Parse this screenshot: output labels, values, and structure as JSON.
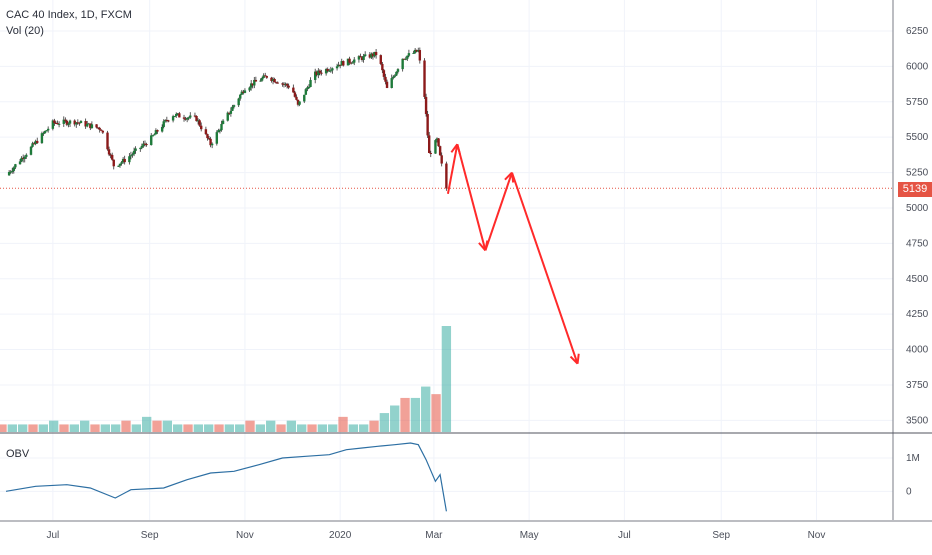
{
  "chart_data": [
    {
      "type": "candlestick",
      "title": "CAC 40 Index, 1D, FXCM",
      "indicator_label": "Vol (20)",
      "y_ticks": [
        3500,
        3750,
        4000,
        4250,
        4500,
        4750,
        5000,
        5250,
        5500,
        5750,
        6000,
        6250
      ],
      "ylim": [
        3460,
        6370
      ],
      "last_price": 5139,
      "x_ticks": [
        "Jul",
        "Sep",
        "Nov",
        "2020",
        "Mar",
        "May",
        "Jul",
        "Sep",
        "Nov"
      ],
      "series_close": {
        "x": [
          "2019-06-01",
          "2019-06-15",
          "2019-07-01",
          "2019-07-15",
          "2019-08-01",
          "2019-08-09",
          "2019-08-15",
          "2019-09-01",
          "2019-09-15",
          "2019-10-01",
          "2019-10-10",
          "2019-10-20",
          "2019-11-01",
          "2019-11-15",
          "2019-12-01",
          "2019-12-05",
          "2019-12-15",
          "2020-01-01",
          "2020-01-15",
          "2020-01-25",
          "2020-01-31",
          "2020-02-10",
          "2020-02-20",
          "2020-02-24",
          "2020-02-27",
          "2020-03-03",
          "2020-03-06",
          "2020-03-09"
        ],
        "values": [
          5230,
          5400,
          5600,
          5610,
          5560,
          5300,
          5330,
          5480,
          5660,
          5630,
          5450,
          5640,
          5850,
          5930,
          5850,
          5720,
          5940,
          6020,
          6060,
          6090,
          5840,
          6060,
          6110,
          5790,
          5380,
          5480,
          5300,
          5139
        ]
      },
      "annotation_path": {
        "x": [
          "2020-03-10",
          "2020-03-16",
          "2020-04-03",
          "2020-04-20",
          "2020-06-01"
        ],
        "values": [
          5100,
          5450,
          4700,
          5250,
          3900
        ]
      }
    },
    {
      "type": "bar",
      "title": "Vol (20)",
      "note": "volume bars, scale not printed",
      "values": [
        2,
        2,
        2,
        2,
        2,
        3,
        2,
        2,
        3,
        2,
        2,
        2,
        3,
        2,
        4,
        3,
        3,
        2,
        2,
        2,
        2,
        2,
        2,
        2,
        3,
        2,
        3,
        2,
        3,
        2,
        2,
        2,
        2,
        4,
        2,
        2,
        3,
        5,
        7,
        9,
        9,
        12,
        10,
        28
      ]
    },
    {
      "type": "line",
      "title": "OBV",
      "y_ticks": [
        "1M",
        "0"
      ],
      "x": [
        "2019-06-01",
        "2019-06-20",
        "2019-07-10",
        "2019-07-25",
        "2019-08-10",
        "2019-08-20",
        "2019-09-10",
        "2019-09-25",
        "2019-10-10",
        "2019-10-25",
        "2019-11-10",
        "2019-11-25",
        "2019-12-10",
        "2019-12-25",
        "2020-01-05",
        "2020-01-15",
        "2020-01-25",
        "2020-02-05",
        "2020-02-15",
        "2020-02-20",
        "2020-02-25",
        "2020-03-02",
        "2020-03-05",
        "2020-03-09"
      ],
      "values": [
        0.0,
        0.15,
        0.2,
        0.1,
        -0.2,
        0.05,
        0.1,
        0.35,
        0.55,
        0.6,
        0.8,
        1.0,
        1.05,
        1.1,
        1.25,
        1.3,
        1.35,
        1.4,
        1.45,
        1.4,
        0.95,
        0.3,
        0.5,
        -0.6
      ]
    }
  ]
}
